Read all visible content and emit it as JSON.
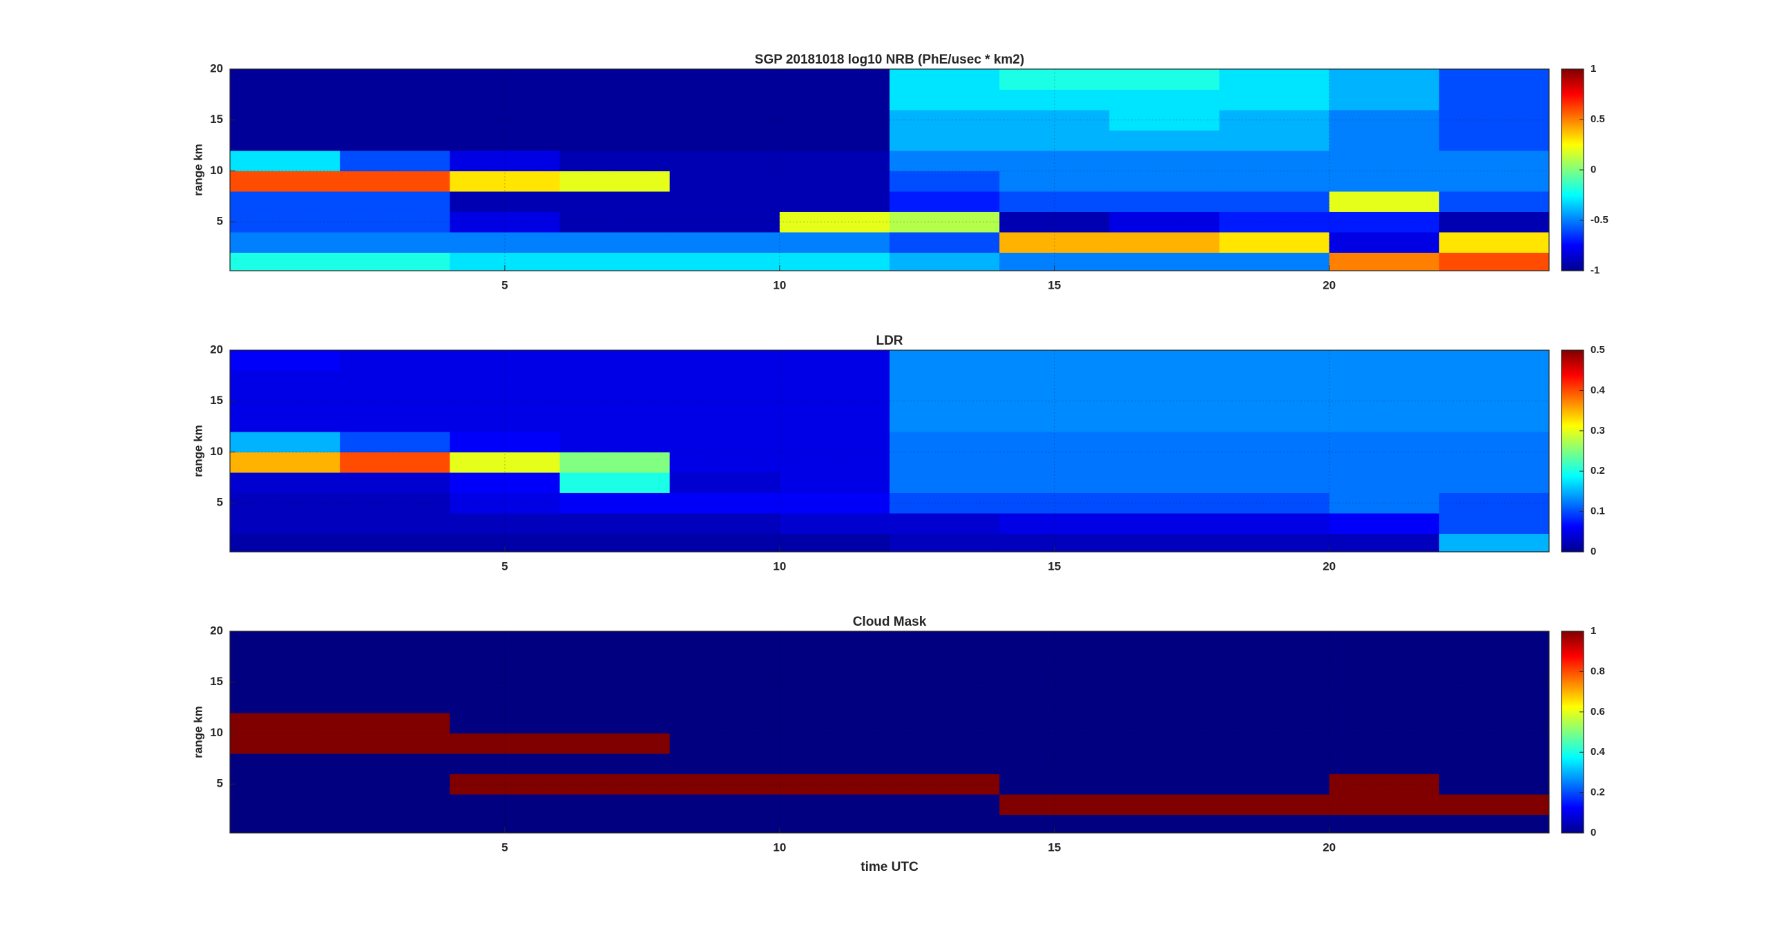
{
  "chart_data": [
    {
      "type": "heatmap",
      "title": "SGP 20181018  log10 NRB (PhE/usec * km2)",
      "ylabel": "range km",
      "colormap": "jet",
      "grid": true,
      "x": [
        1,
        3,
        5,
        7,
        9,
        11,
        13,
        15,
        17,
        19,
        21,
        23
      ],
      "y": [
        1,
        3,
        5,
        7,
        9,
        11,
        13,
        15,
        17,
        19
      ],
      "z": [
        [
          -0.2,
          -0.2,
          -0.3,
          -0.3,
          -0.3,
          -0.3,
          -0.4,
          -0.5,
          -0.5,
          -0.5,
          0.5,
          0.6
        ],
        [
          -0.5,
          -0.5,
          -0.5,
          -0.5,
          -0.5,
          -0.5,
          -0.6,
          0.4,
          0.4,
          0.3,
          -0.8,
          0.3
        ],
        [
          -0.6,
          -0.6,
          -0.8,
          -0.9,
          -0.9,
          0.2,
          0.1,
          -0.9,
          -0.8,
          -0.7,
          -0.7,
          -0.9
        ],
        [
          -0.6,
          -0.6,
          -0.9,
          -0.9,
          -0.9,
          -0.9,
          -0.7,
          -0.6,
          -0.6,
          -0.6,
          0.2,
          -0.6
        ],
        [
          0.6,
          0.6,
          0.3,
          0.2,
          -0.9,
          -0.9,
          -0.6,
          -0.5,
          -0.5,
          -0.5,
          -0.5,
          -0.5
        ],
        [
          -0.3,
          -0.6,
          -0.8,
          -0.9,
          -0.9,
          -0.9,
          -0.5,
          -0.5,
          -0.5,
          -0.5,
          -0.5,
          -0.5
        ],
        [
          -0.95,
          -0.95,
          -0.95,
          -0.95,
          -0.95,
          -0.95,
          -0.4,
          -0.4,
          -0.4,
          -0.4,
          -0.5,
          -0.6
        ],
        [
          -0.95,
          -0.95,
          -0.95,
          -0.95,
          -0.95,
          -0.95,
          -0.4,
          -0.4,
          -0.3,
          -0.4,
          -0.5,
          -0.6
        ],
        [
          -0.95,
          -0.95,
          -0.95,
          -0.95,
          -0.95,
          -0.95,
          -0.3,
          -0.3,
          -0.3,
          -0.3,
          -0.4,
          -0.6
        ],
        [
          -0.95,
          -0.95,
          -0.95,
          -0.95,
          -0.95,
          -0.95,
          -0.3,
          -0.2,
          -0.2,
          -0.3,
          -0.4,
          -0.6
        ]
      ],
      "xlim": [
        0,
        24
      ],
      "ylim": [
        0.2,
        20
      ],
      "xticks": [
        5,
        10,
        15,
        20
      ],
      "yticks": [
        5,
        10,
        15,
        20
      ],
      "clim": [
        -1,
        1
      ],
      "cticks": [
        -1,
        -0.5,
        0,
        0.5,
        1
      ]
    },
    {
      "type": "heatmap",
      "title": "LDR",
      "ylabel": "range km",
      "colormap": "jet",
      "grid": true,
      "x": [
        1,
        3,
        5,
        7,
        9,
        11,
        13,
        15,
        17,
        19,
        21,
        23
      ],
      "y": [
        1,
        3,
        5,
        7,
        9,
        11,
        13,
        15,
        17,
        19
      ],
      "z": [
        [
          0.02,
          0.02,
          0.02,
          0.02,
          0.02,
          0.02,
          0.03,
          0.03,
          0.03,
          0.03,
          0.03,
          0.15
        ],
        [
          0.03,
          0.03,
          0.03,
          0.03,
          0.03,
          0.04,
          0.04,
          0.05,
          0.05,
          0.05,
          0.06,
          0.1
        ],
        [
          0.03,
          0.03,
          0.05,
          0.06,
          0.06,
          0.06,
          0.1,
          0.1,
          0.1,
          0.1,
          0.12,
          0.1
        ],
        [
          0.04,
          0.04,
          0.06,
          0.2,
          0.04,
          0.05,
          0.12,
          0.12,
          0.12,
          0.12,
          0.12,
          0.12
        ],
        [
          0.35,
          0.4,
          0.3,
          0.25,
          0.05,
          0.05,
          0.12,
          0.12,
          0.12,
          0.12,
          0.12,
          0.12
        ],
        [
          0.15,
          0.1,
          0.06,
          0.05,
          0.05,
          0.05,
          0.12,
          0.12,
          0.12,
          0.12,
          0.12,
          0.12
        ],
        [
          0.05,
          0.05,
          0.05,
          0.05,
          0.05,
          0.05,
          0.13,
          0.13,
          0.13,
          0.13,
          0.13,
          0.13
        ],
        [
          0.05,
          0.05,
          0.05,
          0.05,
          0.05,
          0.05,
          0.13,
          0.13,
          0.13,
          0.13,
          0.13,
          0.13
        ],
        [
          0.05,
          0.05,
          0.05,
          0.05,
          0.05,
          0.05,
          0.13,
          0.13,
          0.13,
          0.13,
          0.13,
          0.13
        ],
        [
          0.06,
          0.05,
          0.05,
          0.05,
          0.05,
          0.05,
          0.13,
          0.13,
          0.13,
          0.13,
          0.13,
          0.13
        ]
      ],
      "xlim": [
        0,
        24
      ],
      "ylim": [
        0.2,
        20
      ],
      "xticks": [
        5,
        10,
        15,
        20
      ],
      "yticks": [
        5,
        10,
        15,
        20
      ],
      "clim": [
        0,
        0.5
      ],
      "cticks": [
        0,
        0.1,
        0.2,
        0.3,
        0.4,
        0.5
      ]
    },
    {
      "type": "heatmap",
      "title": "Cloud Mask",
      "xlabel": "time UTC",
      "ylabel": "range km",
      "colormap": "jet",
      "grid": true,
      "x": [
        1,
        3,
        5,
        7,
        9,
        11,
        13,
        15,
        17,
        19,
        21,
        23
      ],
      "y": [
        1,
        3,
        5,
        7,
        9,
        11,
        13,
        15,
        17,
        19
      ],
      "z": [
        [
          0,
          0,
          0,
          0,
          0,
          0,
          0,
          0,
          0,
          0,
          0,
          0
        ],
        [
          0,
          0,
          0,
          0,
          0,
          0,
          0,
          1,
          1,
          1,
          1,
          1
        ],
        [
          0,
          0,
          1,
          1,
          1,
          1,
          1,
          0,
          0,
          0,
          1,
          0
        ],
        [
          0,
          0,
          0,
          0,
          0,
          0,
          0,
          0,
          0,
          0,
          0,
          0
        ],
        [
          1,
          1,
          1,
          1,
          0,
          0,
          0,
          0,
          0,
          0,
          0,
          0
        ],
        [
          1,
          1,
          0,
          0,
          0,
          0,
          0,
          0,
          0,
          0,
          0,
          0
        ],
        [
          0,
          0,
          0,
          0,
          0,
          0,
          0,
          0,
          0,
          0,
          0,
          0
        ],
        [
          0,
          0,
          0,
          0,
          0,
          0,
          0,
          0,
          0,
          0,
          0,
          0
        ],
        [
          0,
          0,
          0,
          0,
          0,
          0,
          0,
          0,
          0,
          0,
          0,
          0
        ],
        [
          0,
          0,
          0,
          0,
          0,
          0,
          0,
          0,
          0,
          0,
          0,
          0
        ]
      ],
      "xlim": [
        0,
        24
      ],
      "ylim": [
        0.2,
        20
      ],
      "xticks": [
        5,
        10,
        15,
        20
      ],
      "yticks": [
        5,
        10,
        15,
        20
      ],
      "clim": [
        0,
        1
      ],
      "cticks": [
        0,
        0.2,
        0.4,
        0.6,
        0.8,
        1
      ]
    }
  ]
}
